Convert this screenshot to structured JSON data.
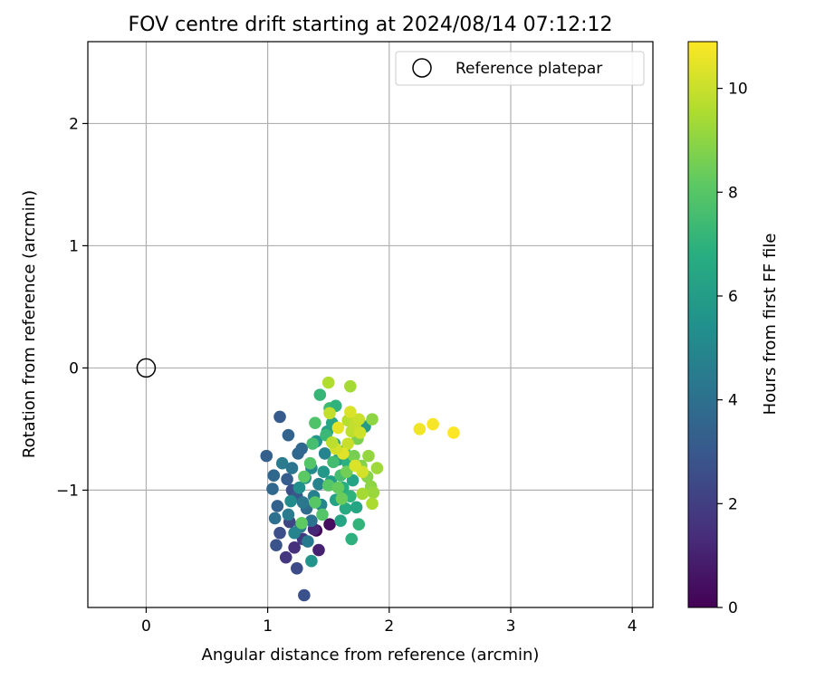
{
  "chart_data": {
    "type": "scatter",
    "title": "FOV centre drift starting at 2024/08/14 07:12:12",
    "xlabel": "Angular distance from reference (arcmin)",
    "ylabel": "Rotation from reference (arcmin)",
    "xlim": [
      -0.48,
      4.17
    ],
    "ylim": [
      -1.96,
      2.67
    ],
    "xticks": [
      0,
      1,
      2,
      3,
      4
    ],
    "yticks": [
      -1,
      0,
      1,
      2
    ],
    "grid": true,
    "legend": {
      "position": "top-right",
      "entries": [
        "Reference platepar"
      ]
    },
    "colorbar": {
      "label": "Hours from first FF file",
      "min": 0,
      "max": 10.9,
      "ticks": [
        0,
        2,
        4,
        6,
        8,
        10
      ],
      "colormap": "viridis"
    },
    "reference_point": {
      "x": 0,
      "y": 0,
      "label": "Reference platepar"
    },
    "series": [
      {
        "points": [
          [
            1.4,
            -1.33,
            0.2
          ],
          [
            1.51,
            -1.28,
            0.4
          ],
          [
            1.42,
            -1.49,
            1.0
          ],
          [
            1.22,
            -1.47,
            1.5
          ],
          [
            1.15,
            -1.55,
            1.7
          ],
          [
            1.38,
            -1.32,
            1.2
          ],
          [
            1.29,
            -1.4,
            1.8
          ],
          [
            1.24,
            -1.64,
            2.5
          ],
          [
            1.3,
            -1.86,
            2.7
          ],
          [
            1.07,
            -1.45,
            2.8
          ],
          [
            1.1,
            -1.35,
            2.6
          ],
          [
            1.18,
            -1.26,
            2.3
          ],
          [
            1.2,
            -1.0,
            2.6
          ],
          [
            1.24,
            -1.05,
            3.0
          ],
          [
            1.16,
            -0.91,
            3.2
          ],
          [
            1.08,
            -1.13,
            3.4
          ],
          [
            1.04,
            -0.99,
            3.7
          ],
          [
            1.05,
            -0.88,
            3.6
          ],
          [
            0.99,
            -0.72,
            3.3
          ],
          [
            1.06,
            -1.23,
            4.0
          ],
          [
            1.1,
            -0.4,
            3.1
          ],
          [
            1.17,
            -0.55,
            3.5
          ],
          [
            1.12,
            -0.78,
            4.5
          ],
          [
            1.2,
            -0.82,
            4.2
          ],
          [
            1.25,
            -0.7,
            3.6
          ],
          [
            1.28,
            -0.66,
            3.7
          ],
          [
            1.32,
            -1.15,
            3.8
          ],
          [
            1.36,
            -1.25,
            4.1
          ],
          [
            1.33,
            -1.42,
            4.4
          ],
          [
            1.36,
            -1.58,
            5.6
          ],
          [
            1.27,
            -1.3,
            4.6
          ],
          [
            1.22,
            -1.35,
            4.9
          ],
          [
            1.29,
            -1.1,
            4.3
          ],
          [
            1.38,
            -1.05,
            4.7
          ],
          [
            1.42,
            -0.95,
            4.8
          ],
          [
            1.44,
            -1.12,
            5.0
          ],
          [
            1.47,
            -0.7,
            4.9
          ],
          [
            1.36,
            -0.82,
            5.1
          ],
          [
            1.26,
            -0.98,
            5.4
          ],
          [
            1.19,
            -1.09,
            5.2
          ],
          [
            1.17,
            -1.2,
            4.5
          ],
          [
            1.31,
            -0.9,
            5.5
          ],
          [
            1.4,
            -0.6,
            5.7
          ],
          [
            1.46,
            -0.85,
            5.8
          ],
          [
            1.52,
            -0.93,
            6.0
          ],
          [
            1.56,
            -1.08,
            6.2
          ],
          [
            1.6,
            -1.25,
            6.4
          ],
          [
            1.64,
            -1.15,
            6.6
          ],
          [
            1.58,
            -0.75,
            6.1
          ],
          [
            1.49,
            -0.52,
            6.3
          ],
          [
            1.53,
            -0.45,
            6.5
          ],
          [
            1.55,
            -0.62,
            6.7
          ],
          [
            1.62,
            -0.98,
            6.8
          ],
          [
            1.66,
            -0.78,
            6.9
          ],
          [
            1.7,
            -0.92,
            6.3
          ],
          [
            1.68,
            -1.05,
            7.0
          ],
          [
            1.73,
            -1.14,
            6.4
          ],
          [
            1.8,
            -0.48,
            5.9
          ],
          [
            1.69,
            -1.4,
            6.9
          ],
          [
            1.75,
            -1.28,
            7.1
          ],
          [
            1.43,
            -0.22,
            7.2
          ],
          [
            1.51,
            -0.33,
            7.4
          ],
          [
            1.56,
            -0.31,
            7.0
          ],
          [
            1.48,
            -0.55,
            7.3
          ],
          [
            1.54,
            -0.77,
            7.5
          ],
          [
            1.6,
            -0.88,
            7.6
          ],
          [
            1.63,
            -0.68,
            7.7
          ],
          [
            1.39,
            -0.45,
            7.8
          ],
          [
            1.35,
            -0.78,
            7.9
          ],
          [
            1.37,
            -0.62,
            7.6
          ],
          [
            1.45,
            -1.2,
            7.9
          ],
          [
            1.39,
            -1.1,
            8.0
          ],
          [
            1.28,
            -1.27,
            8.2
          ],
          [
            1.3,
            -0.89,
            8.1
          ],
          [
            1.5,
            -0.96,
            8.0
          ],
          [
            1.58,
            -0.98,
            8.3
          ],
          [
            1.61,
            -1.07,
            8.4
          ],
          [
            1.65,
            -0.85,
            8.5
          ],
          [
            1.71,
            -0.72,
            8.6
          ],
          [
            1.74,
            -0.58,
            8.7
          ],
          [
            1.77,
            -0.8,
            8.8
          ],
          [
            1.82,
            -0.89,
            8.9
          ],
          [
            1.85,
            -0.97,
            9.0
          ],
          [
            1.87,
            -1.02,
            9.2
          ],
          [
            1.78,
            -1.03,
            9.4
          ],
          [
            1.86,
            -1.11,
            9.5
          ],
          [
            1.9,
            -0.82,
            9.3
          ],
          [
            1.83,
            -0.72,
            9.1
          ],
          [
            1.86,
            -0.42,
            9.0
          ],
          [
            1.68,
            -0.15,
            9.4
          ],
          [
            1.5,
            -0.12,
            9.6
          ],
          [
            1.66,
            -0.43,
            9.7
          ],
          [
            1.69,
            -0.52,
            9.8
          ],
          [
            1.72,
            -0.46,
            9.9
          ],
          [
            1.75,
            -0.42,
            10.0
          ],
          [
            1.76,
            -0.53,
            10.1
          ],
          [
            1.78,
            -0.85,
            10.2
          ],
          [
            1.72,
            -0.8,
            10.3
          ],
          [
            1.66,
            -0.62,
            10.0
          ],
          [
            1.62,
            -0.7,
            10.4
          ],
          [
            1.56,
            -0.66,
            10.2
          ],
          [
            1.53,
            -0.61,
            9.8
          ],
          [
            1.51,
            -0.37,
            9.9
          ],
          [
            1.58,
            -0.49,
            10.5
          ],
          [
            1.68,
            -0.36,
            10.3
          ],
          [
            2.25,
            -0.5,
            10.7
          ],
          [
            2.36,
            -0.46,
            10.8
          ],
          [
            2.53,
            -0.53,
            10.9
          ]
        ]
      }
    ]
  }
}
